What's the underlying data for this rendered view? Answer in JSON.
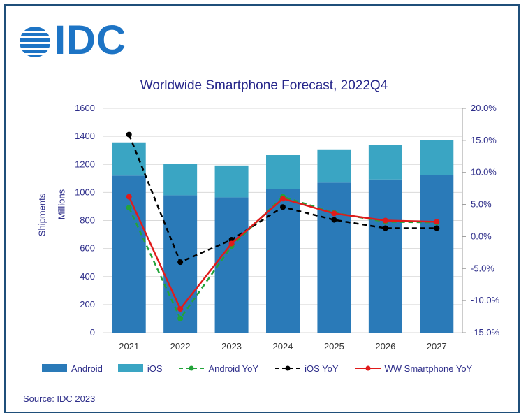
{
  "logo": {
    "text": "IDC"
  },
  "title": "Worldwide Smartphone Forecast, 2022Q4",
  "source": "Source: IDC 2023",
  "colors": {
    "android": "#2a7ab8",
    "ios": "#3aa5c3",
    "android_yoy": "#23a33a",
    "ios_yoy": "#000000",
    "ww_yoy": "#e01b1b",
    "axis_text": "#2e2e8a",
    "grid": "#d9d9d9"
  },
  "chart_data": {
    "type": "bar",
    "stacked": true,
    "categories": [
      "2021",
      "2022",
      "2023",
      "2024",
      "2025",
      "2026",
      "2027"
    ],
    "series": [
      {
        "name": "Android",
        "kind": "bar",
        "values": [
          1120,
          980,
          965,
          1025,
          1070,
          1093,
          1122
        ]
      },
      {
        "name": "iOS",
        "kind": "bar",
        "values": [
          237,
          223,
          227,
          241,
          237,
          247,
          250
        ]
      },
      {
        "name": "Android YoY",
        "kind": "line",
        "axis": "right",
        "style": "dashed",
        "values": [
          4.5,
          -12.8,
          -1.5,
          6.2,
          3.7,
          2.3,
          2.2
        ]
      },
      {
        "name": "iOS YoY",
        "kind": "line",
        "axis": "right",
        "style": "dashed",
        "values": [
          15.9,
          -4.0,
          -0.5,
          4.6,
          2.6,
          1.3,
          1.3
        ]
      },
      {
        "name": "WW Smartphone YoY",
        "kind": "line",
        "axis": "right",
        "style": "solid",
        "values": [
          6.2,
          -11.3,
          -1.1,
          5.9,
          3.6,
          2.5,
          2.3
        ]
      }
    ],
    "ylabel": "Shipments",
    "ylabel2": "Millions",
    "ylim": [
      0,
      1600
    ],
    "yticks": [
      "0",
      "200",
      "400",
      "600",
      "800",
      "1000",
      "1200",
      "1400",
      "1600"
    ],
    "y2lim": [
      -15,
      20
    ],
    "y2ticks": [
      "-15.0%",
      "-10.0%",
      "-5.0%",
      "0.0%",
      "5.0%",
      "10.0%",
      "15.0%",
      "20.0%"
    ],
    "grid": true,
    "legend_position": "bottom"
  }
}
